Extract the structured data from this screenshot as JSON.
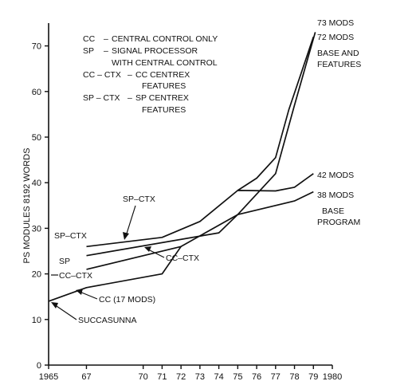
{
  "chart_data": {
    "type": "line",
    "title": "",
    "xlabel": "",
    "ylabel": "PS MODULES 8192 WORDS",
    "xlim": [
      1965,
      1980
    ],
    "ylim": [
      0,
      75
    ],
    "x_ticks": [
      {
        "value": 1965,
        "label": "1965"
      },
      {
        "value": 1967,
        "label": "67"
      },
      {
        "value": 1970,
        "label": "70"
      },
      {
        "value": 1971,
        "label": "71"
      },
      {
        "value": 1972,
        "label": "72"
      },
      {
        "value": 1973,
        "label": "73"
      },
      {
        "value": 1974,
        "label": "74"
      },
      {
        "value": 1975,
        "label": "75"
      },
      {
        "value": 1976,
        "label": "76"
      },
      {
        "value": 1977,
        "label": "77"
      },
      {
        "value": 1978,
        "label": "78"
      },
      {
        "value": 1979,
        "label": "79"
      },
      {
        "value": 1980,
        "label": "1980"
      }
    ],
    "y_ticks": [
      0,
      10,
      20,
      30,
      40,
      50,
      60,
      70
    ],
    "grid": false,
    "legend": {
      "placement": "top-left",
      "entries": [
        {
          "key": "CC",
          "text": "CENTRAL CONTROL ONLY"
        },
        {
          "key": "SP",
          "text": "SIGNAL PROCESSOR",
          "text2": "WITH CENTRAL CONTROL"
        },
        {
          "key": "CC – CTX",
          "text": "CC CENTREX",
          "text2": "FEATURES"
        },
        {
          "key": "SP – CTX",
          "text": "SP CENTREX",
          "text2": "FEATURES"
        }
      ]
    },
    "series": [
      {
        "name": "CC",
        "x": [
          1965,
          1967,
          1971,
          1972
        ],
        "y": [
          14,
          17,
          20,
          26
        ]
      },
      {
        "name": "CC-CTX",
        "x": [
          1967,
          1972,
          1975,
          1977,
          1978,
          1979.1
        ],
        "y": [
          21,
          26,
          33,
          42,
          57,
          73
        ]
      },
      {
        "name": "SP",
        "x": [
          1967,
          1974,
          1975,
          1978,
          1979
        ],
        "y": [
          24,
          29,
          33,
          36,
          38
        ]
      },
      {
        "name": "SP-CTX",
        "x": [
          1967,
          1971,
          1973,
          1975,
          1977,
          1978,
          1979
        ],
        "y": [
          26,
          28,
          31.5,
          38.3,
          38.2,
          39,
          42
        ]
      },
      {
        "name": "SP-CTX base and features",
        "x": [
          1975,
          1976,
          1977,
          1977.7,
          1979
        ],
        "y": [
          38.3,
          41,
          45.5,
          56,
          72
        ]
      }
    ],
    "annotations": {
      "mods_73": "73 MODS",
      "mods_72": "72 MODS",
      "base_features_1": "BASE AND",
      "base_features_2": "FEATURES",
      "mods_42": "42 MODS",
      "mods_38": "38 MODS",
      "base_program_1": "BASE",
      "base_program_2": "PROGRAM",
      "sp_ctx_upper": "SP–CTX",
      "sp_ctx_left": "SP–CTX",
      "sp_left": "SP",
      "cc_ctx_left": "CC–CTX",
      "cc_ctx_mid": "CC–CTX",
      "cc_17_mods": "CC (17 MODS)",
      "succasunna": "SUCCASUNNA"
    }
  }
}
